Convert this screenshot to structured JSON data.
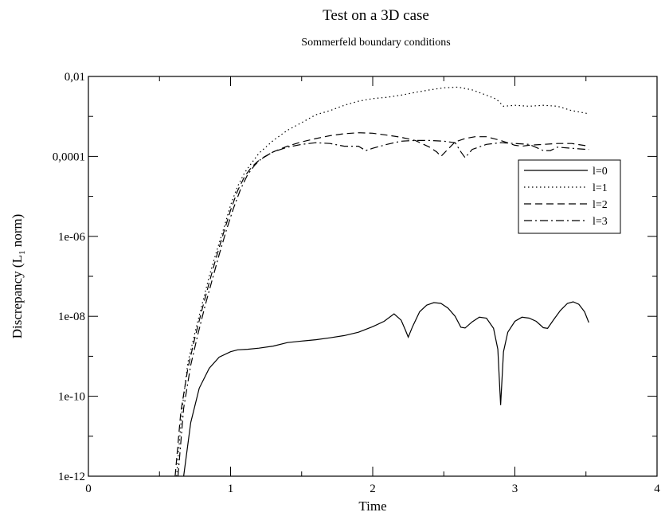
{
  "chart_data": {
    "type": "line",
    "title": "Test on a 3D case",
    "subtitle": "Sommerfeld boundary conditions",
    "xlabel": "Time",
    "ylabel_main": "Discrepancy (L",
    "ylabel_sub": "1",
    "ylabel_end": " norm)",
    "xlim": [
      0,
      4
    ],
    "ylim": [
      1e-12,
      0.01
    ],
    "yscale": "log",
    "grid": false,
    "legend_position": "upper-right",
    "x_ticks": [
      0,
      1,
      2,
      3,
      4
    ],
    "x_tick_labels": [
      "0",
      "1",
      "2",
      "3",
      "4"
    ],
    "y_ticks": [
      1e-12,
      1e-10,
      1e-08,
      1e-06,
      0.0001,
      0.01
    ],
    "y_tick_labels": [
      "1e-12",
      "1e-10",
      "1e-08",
      "1e-06",
      "0,0001",
      "0,01"
    ],
    "series": [
      {
        "name": "l=0",
        "dash": "solid",
        "points": [
          [
            0.67,
            1e-12
          ],
          [
            0.72,
            2.2e-11
          ],
          [
            0.78,
            1.6e-10
          ],
          [
            0.85,
            5e-10
          ],
          [
            0.92,
            9.5e-10
          ],
          [
            1.0,
            1.3e-09
          ],
          [
            1.05,
            1.45e-09
          ],
          [
            1.12,
            1.5e-09
          ],
          [
            1.2,
            1.6e-09
          ],
          [
            1.3,
            1.8e-09
          ],
          [
            1.4,
            2.2e-09
          ],
          [
            1.5,
            2.4e-09
          ],
          [
            1.6,
            2.6e-09
          ],
          [
            1.7,
            2.9e-09
          ],
          [
            1.8,
            3.3e-09
          ],
          [
            1.9,
            4e-09
          ],
          [
            2.0,
            5.5e-09
          ],
          [
            2.08,
            7.5e-09
          ],
          [
            2.15,
            1.15e-08
          ],
          [
            2.2,
            8e-09
          ],
          [
            2.23,
            4.5e-09
          ],
          [
            2.25,
            3e-09
          ],
          [
            2.28,
            5.5e-09
          ],
          [
            2.33,
            1.3e-08
          ],
          [
            2.38,
            1.9e-08
          ],
          [
            2.43,
            2.2e-08
          ],
          [
            2.48,
            2.1e-08
          ],
          [
            2.53,
            1.6e-08
          ],
          [
            2.58,
            1e-08
          ],
          [
            2.62,
            5.3e-09
          ],
          [
            2.65,
            5.1e-09
          ],
          [
            2.7,
            7.3e-09
          ],
          [
            2.75,
            9.5e-09
          ],
          [
            2.8,
            9e-09
          ],
          [
            2.85,
            5e-09
          ],
          [
            2.88,
            1.5e-09
          ],
          [
            2.9,
            6e-11
          ],
          [
            2.92,
            1.3e-09
          ],
          [
            2.95,
            4e-09
          ],
          [
            3.0,
            7.5e-09
          ],
          [
            3.05,
            9.5e-09
          ],
          [
            3.1,
            9e-09
          ],
          [
            3.15,
            7.5e-09
          ],
          [
            3.2,
            5.2e-09
          ],
          [
            3.23,
            5e-09
          ],
          [
            3.27,
            8e-09
          ],
          [
            3.32,
            1.4e-08
          ],
          [
            3.37,
            2.1e-08
          ],
          [
            3.41,
            2.3e-08
          ],
          [
            3.45,
            2e-08
          ],
          [
            3.49,
            1.3e-08
          ],
          [
            3.52,
            7e-09
          ]
        ]
      },
      {
        "name": "l=1",
        "dash": "dotted",
        "points": [
          [
            0.62,
            1e-12
          ],
          [
            0.66,
            5e-11
          ],
          [
            0.7,
            7e-10
          ],
          [
            0.75,
            4e-09
          ],
          [
            0.8,
            2e-08
          ],
          [
            0.85,
            1e-07
          ],
          [
            0.9,
            4e-07
          ],
          [
            0.95,
            1.5e-06
          ],
          [
            1.0,
            6e-06
          ],
          [
            1.05,
            1.8e-05
          ],
          [
            1.1,
            4e-05
          ],
          [
            1.15,
            7e-05
          ],
          [
            1.2,
            0.00012
          ],
          [
            1.3,
            0.00025
          ],
          [
            1.4,
            0.00045
          ],
          [
            1.5,
            0.0007
          ],
          [
            1.6,
            0.0011
          ],
          [
            1.7,
            0.0014
          ],
          [
            1.8,
            0.0019
          ],
          [
            1.9,
            0.0024
          ],
          [
            2.0,
            0.0028
          ],
          [
            2.1,
            0.003
          ],
          [
            2.2,
            0.0034
          ],
          [
            2.3,
            0.004
          ],
          [
            2.4,
            0.0046
          ],
          [
            2.5,
            0.0052
          ],
          [
            2.6,
            0.0054
          ],
          [
            2.7,
            0.0046
          ],
          [
            2.8,
            0.0034
          ],
          [
            2.87,
            0.0027
          ],
          [
            2.92,
            0.0018
          ],
          [
            3.0,
            0.0019
          ],
          [
            3.1,
            0.0018
          ],
          [
            3.2,
            0.0019
          ],
          [
            3.3,
            0.0018
          ],
          [
            3.4,
            0.0014
          ],
          [
            3.5,
            0.0012
          ],
          [
            3.52,
            0.00115
          ]
        ]
      },
      {
        "name": "l=2",
        "dash": "dashed",
        "points": [
          [
            0.61,
            1e-12
          ],
          [
            0.65,
            4e-11
          ],
          [
            0.7,
            5e-10
          ],
          [
            0.75,
            3e-09
          ],
          [
            0.8,
            1.5e-08
          ],
          [
            0.85,
            7e-08
          ],
          [
            0.9,
            3e-07
          ],
          [
            0.95,
            1.2e-06
          ],
          [
            1.0,
            4.5e-06
          ],
          [
            1.05,
            1.4e-05
          ],
          [
            1.1,
            3.2e-05
          ],
          [
            1.15,
            5.5e-05
          ],
          [
            1.2,
            8e-05
          ],
          [
            1.3,
            0.00013
          ],
          [
            1.4,
            0.00018
          ],
          [
            1.5,
            0.00023
          ],
          [
            1.6,
            0.00028
          ],
          [
            1.7,
            0.00033
          ],
          [
            1.8,
            0.00037
          ],
          [
            1.9,
            0.00039
          ],
          [
            2.0,
            0.00038
          ],
          [
            2.1,
            0.00034
          ],
          [
            2.2,
            0.0003
          ],
          [
            2.3,
            0.00025
          ],
          [
            2.4,
            0.00017
          ],
          [
            2.45,
            0.00013
          ],
          [
            2.48,
            0.0001
          ],
          [
            2.52,
            0.00014
          ],
          [
            2.58,
            0.00023
          ],
          [
            2.65,
            0.00028
          ],
          [
            2.72,
            0.00031
          ],
          [
            2.8,
            0.00031
          ],
          [
            2.9,
            0.00025
          ],
          [
            3.0,
            0.00019
          ],
          [
            3.05,
            0.00018
          ],
          [
            3.1,
            0.00019
          ],
          [
            3.2,
            0.0002
          ],
          [
            3.3,
            0.00021
          ],
          [
            3.4,
            0.00021
          ],
          [
            3.5,
            0.000185
          ],
          [
            3.52,
            0.00018
          ]
        ]
      },
      {
        "name": "l=3",
        "dash": "dashdot",
        "points": [
          [
            0.63,
            1e-12
          ],
          [
            0.67,
            5e-11
          ],
          [
            0.72,
            6e-10
          ],
          [
            0.77,
            3.5e-09
          ],
          [
            0.82,
            1.8e-08
          ],
          [
            0.87,
            8e-08
          ],
          [
            0.92,
            3.5e-07
          ],
          [
            0.97,
            1.4e-06
          ],
          [
            1.02,
            5e-06
          ],
          [
            1.07,
            1.5e-05
          ],
          [
            1.12,
            3.5e-05
          ],
          [
            1.17,
            6e-05
          ],
          [
            1.22,
            9e-05
          ],
          [
            1.3,
            0.00013
          ],
          [
            1.4,
            0.00017
          ],
          [
            1.5,
            0.0002
          ],
          [
            1.6,
            0.00022
          ],
          [
            1.7,
            0.00021
          ],
          [
            1.8,
            0.00018
          ],
          [
            1.9,
            0.00018
          ],
          [
            1.95,
            0.00014
          ],
          [
            2.0,
            0.00016
          ],
          [
            2.1,
            0.0002
          ],
          [
            2.2,
            0.00024
          ],
          [
            2.3,
            0.00025
          ],
          [
            2.4,
            0.00025
          ],
          [
            2.5,
            0.00024
          ],
          [
            2.58,
            0.00022
          ],
          [
            2.62,
            0.00013
          ],
          [
            2.65,
            9.3e-05
          ],
          [
            2.7,
            0.00015
          ],
          [
            2.8,
            0.0002
          ],
          [
            2.9,
            0.00022
          ],
          [
            3.0,
            0.00021
          ],
          [
            3.1,
            0.0002
          ],
          [
            3.2,
            0.00014
          ],
          [
            3.25,
            0.00014
          ],
          [
            3.3,
            0.00017
          ],
          [
            3.4,
            0.00016
          ],
          [
            3.5,
            0.00015
          ],
          [
            3.52,
            0.00015
          ]
        ]
      }
    ]
  }
}
